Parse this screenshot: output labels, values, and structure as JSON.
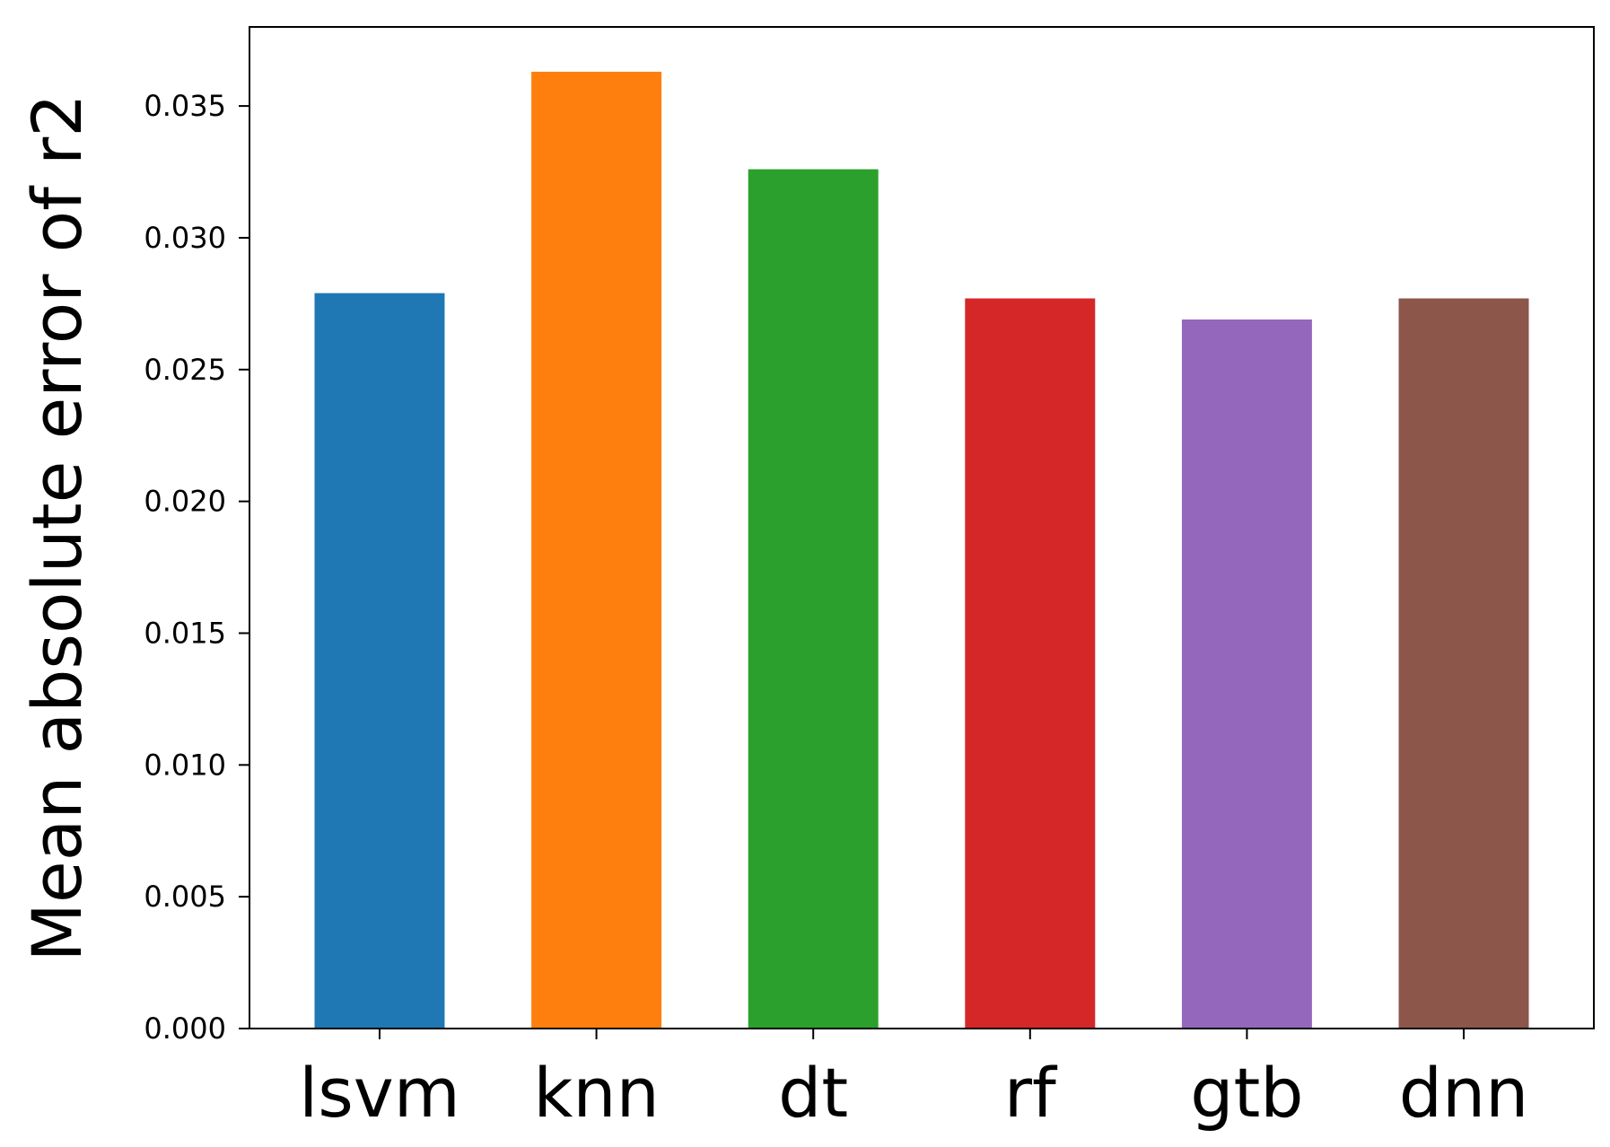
{
  "chart_data": {
    "type": "bar",
    "title": "",
    "xlabel": "",
    "ylabel": "Mean absolute error of r2",
    "categories": [
      "lsvm",
      "knn",
      "dt",
      "rf",
      "gtb",
      "dnn"
    ],
    "values": [
      0.0279,
      0.0363,
      0.0326,
      0.0277,
      0.0269,
      0.0277
    ],
    "colors": [
      "#1f77b4",
      "#ff7f0e",
      "#2ca02c",
      "#d62728",
      "#9467bd",
      "#8c564b"
    ],
    "ylim": [
      0,
      0.038
    ],
    "yticks": [
      0.0,
      0.005,
      0.01,
      0.015,
      0.02,
      0.025,
      0.03,
      0.035
    ],
    "ytick_labels": [
      "0.000",
      "0.005",
      "0.010",
      "0.015",
      "0.020",
      "0.025",
      "0.030",
      "0.035"
    ],
    "grid": false,
    "legend": "none"
  }
}
